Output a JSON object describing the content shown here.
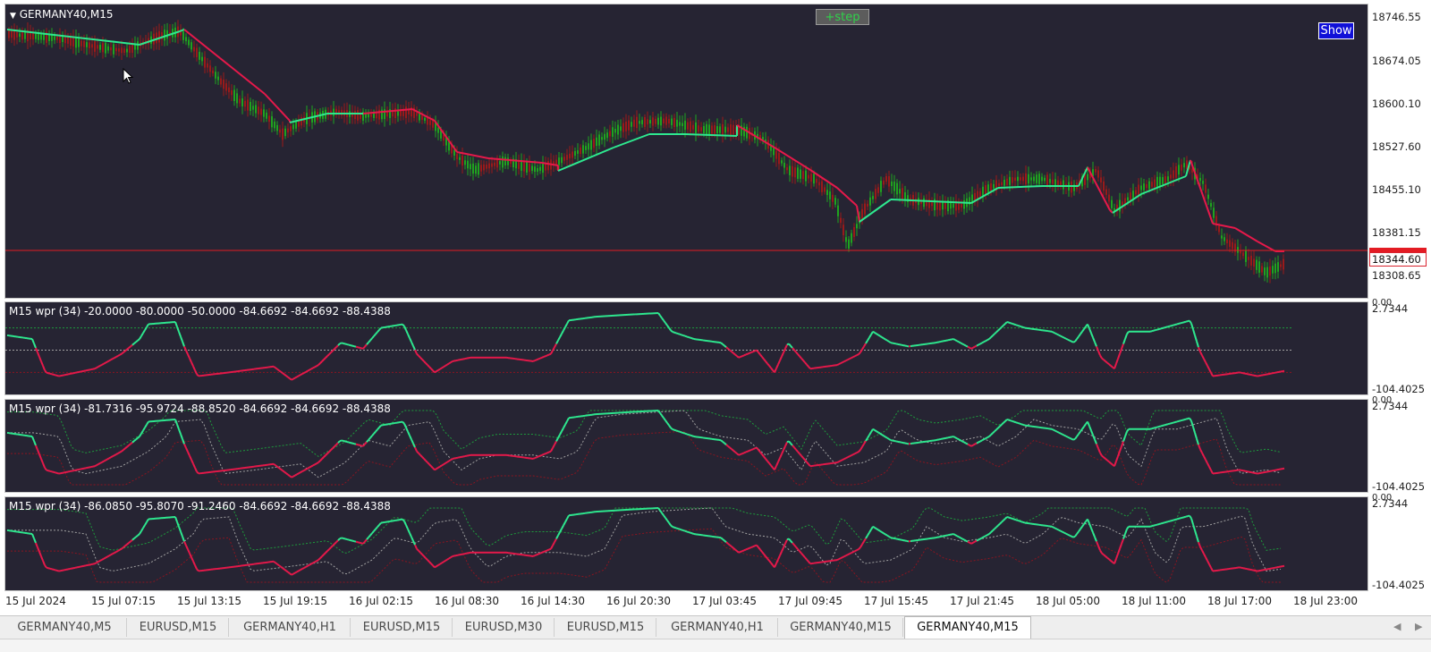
{
  "window": {
    "symbol_label": "GERMANY40,M15"
  },
  "buttons": {
    "step": "+step",
    "show": "Show"
  },
  "price_axis": {
    "labels": [
      "18746.55",
      "18674.05",
      "18600.10",
      "18527.60",
      "18455.10",
      "18381.15",
      "18308.65"
    ],
    "current_price": "18344.60",
    "ref_line_color": "#e31b23"
  },
  "indicators": [
    {
      "label": "M15 wpr  (34) -20.0000 -80.0000 -50.0000 -84.6692 -84.6692 -88.4388",
      "zero": "0.00",
      "max": "2.7344",
      "min": "-104.4025"
    },
    {
      "label": "M15 wpr  (34) -81.7316 -95.9724 -88.8520 -84.6692 -84.6692 -88.4388",
      "zero": "0.00",
      "max": "2.7344",
      "min": "-104.4025"
    },
    {
      "label": "M15 wpr  (34) -86.0850 -95.8070 -91.2460 -84.6692 -84.6692 -88.4388",
      "zero": "0.00",
      "max": "2.7344",
      "min": "-104.4025"
    }
  ],
  "time_axis": [
    "15 Jul 2024",
    "15 Jul 07:15",
    "15 Jul 13:15",
    "15 Jul 19:15",
    "16 Jul 02:15",
    "16 Jul 08:30",
    "16 Jul 14:30",
    "16 Jul 20:30",
    "17 Jul 03:45",
    "17 Jul 09:45",
    "17 Jul 15:45",
    "17 Jul 21:45",
    "18 Jul 05:00",
    "18 Jul 11:00",
    "18 Jul 17:00",
    "18 Jul 23:00"
  ],
  "tabs": [
    "GERMANY40,M5",
    "EURUSD,M15",
    "GERMANY40,H1",
    "EURUSD,M15",
    "EURUSD,M30",
    "EURUSD,M15",
    "GERMANY40,H1",
    "GERMANY40,M15",
    "GERMANY40,M15"
  ],
  "active_tab_index": 8,
  "colors": {
    "bull": "#2ee88f",
    "bear": "#e5194a",
    "pane_bg": "#262433",
    "candle_up": "#1fa31f",
    "candle_down": "#9a1a1a"
  }
}
